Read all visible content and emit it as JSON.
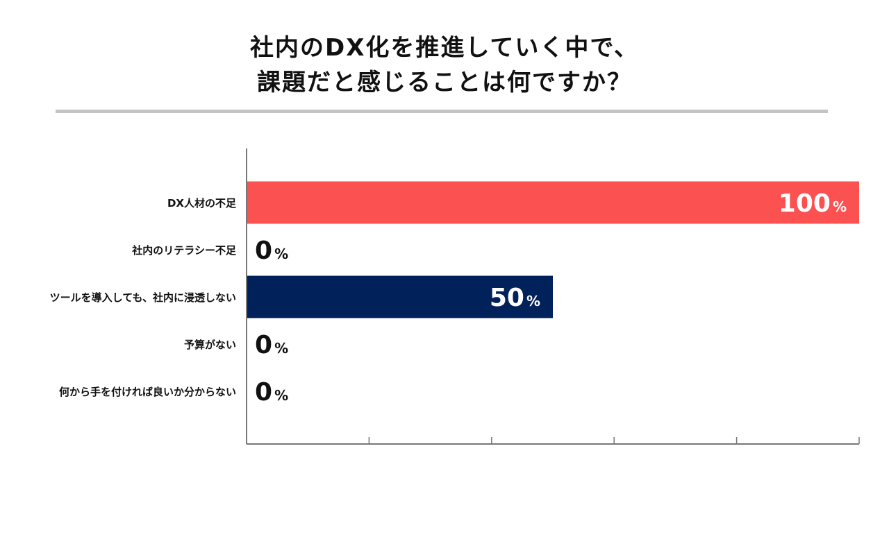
{
  "title": {
    "line1": "社内のDX化を推進していく中で、",
    "line2": "課題だと感じることは何ですか？"
  },
  "chart_data": {
    "type": "bar",
    "orientation": "horizontal",
    "title": "社内のDX化を推進していく中で、課題だと感じることは何ですか？",
    "categories": [
      "DX人材の不足",
      "社内のリテラシー不足",
      "ツールを導入しても、社内に浸透しない",
      "予算がない",
      "何から手を付ければ良いか分からない"
    ],
    "values": [
      100,
      0,
      50,
      0,
      0
    ],
    "value_suffix": "%",
    "bar_colors": [
      "#fc5151",
      "#fc5151",
      "#00215a",
      "#00215a",
      "#00215a"
    ],
    "xlim": [
      0,
      100
    ],
    "x_tick_count": 5,
    "grid": false,
    "legend": "none"
  }
}
